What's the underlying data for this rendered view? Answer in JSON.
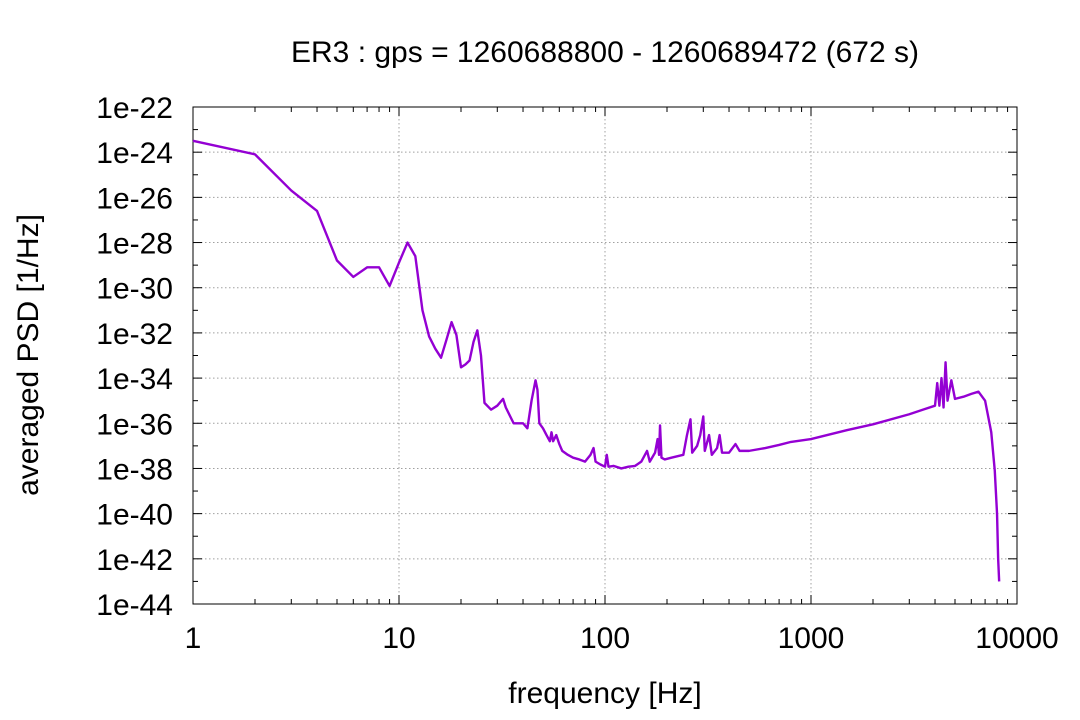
{
  "chart_data": {
    "type": "line",
    "title": "ER3 : gps = 1260688800 - 1260689472 (672 s)",
    "xlabel": "frequency [Hz]",
    "ylabel": "averaged PSD [1/Hz]",
    "xscale": "log",
    "yscale": "log",
    "xlim": [
      1,
      10000
    ],
    "ylim": [
      1e-44,
      1e-22
    ],
    "grid": true,
    "legend": "none",
    "xticks": [
      {
        "value": 1,
        "label": "1"
      },
      {
        "value": 10,
        "label": "10"
      },
      {
        "value": 100,
        "label": "100"
      },
      {
        "value": 1000,
        "label": "1000"
      },
      {
        "value": 10000,
        "label": "10000"
      }
    ],
    "yticks": [
      {
        "value": 1e-22,
        "label": "1e-22"
      },
      {
        "value": 1e-24,
        "label": "1e-24"
      },
      {
        "value": 1e-26,
        "label": "1e-26"
      },
      {
        "value": 1e-28,
        "label": "1e-28"
      },
      {
        "value": 1e-30,
        "label": "1e-30"
      },
      {
        "value": 1e-32,
        "label": "1e-32"
      },
      {
        "value": 1e-34,
        "label": "1e-34"
      },
      {
        "value": 1e-36,
        "label": "1e-36"
      },
      {
        "value": 1e-38,
        "label": "1e-38"
      },
      {
        "value": 1e-40,
        "label": "1e-40"
      },
      {
        "value": 1e-42,
        "label": "1e-42"
      },
      {
        "value": 1e-44,
        "label": "1e-44"
      }
    ],
    "series": [
      {
        "color": "#9400d3",
        "points": [
          [
            1,
            3.2e-24
          ],
          [
            2,
            8e-25
          ],
          [
            3,
            2e-26
          ],
          [
            4,
            2.5e-27
          ],
          [
            5,
            1.6e-29
          ],
          [
            6,
            3e-30
          ],
          [
            7,
            8e-30
          ],
          [
            8,
            8e-30
          ],
          [
            9,
            1.2e-30
          ],
          [
            10,
            1.3e-29
          ],
          [
            11,
            1e-28
          ],
          [
            12,
            2.5e-29
          ],
          [
            13,
            1e-31
          ],
          [
            14,
            7e-33
          ],
          [
            15,
            2e-33
          ],
          [
            16,
            8e-34
          ],
          [
            17,
            5e-33
          ],
          [
            18,
            3e-32
          ],
          [
            19,
            8e-33
          ],
          [
            20,
            3e-34
          ],
          [
            21,
            4e-34
          ],
          [
            22,
            6e-34
          ],
          [
            23,
            4e-33
          ],
          [
            24,
            1.3e-32
          ],
          [
            25,
            1e-33
          ],
          [
            26,
            8e-36
          ],
          [
            28,
            4e-36
          ],
          [
            30,
            6e-36
          ],
          [
            32,
            1.2e-35
          ],
          [
            33,
            5e-36
          ],
          [
            36,
            1e-36
          ],
          [
            40,
            1e-36
          ],
          [
            42,
            6e-37
          ],
          [
            44,
            1e-35
          ],
          [
            46,
            8e-35
          ],
          [
            47,
            3e-35
          ],
          [
            48,
            1e-36
          ],
          [
            50,
            6e-37
          ],
          [
            52,
            3e-37
          ],
          [
            54,
            1.6e-37
          ],
          [
            55,
            4e-37
          ],
          [
            56,
            1.6e-37
          ],
          [
            58,
            3e-37
          ],
          [
            60,
            1.2e-37
          ],
          [
            62,
            6e-38
          ],
          [
            66,
            4e-38
          ],
          [
            70,
            3e-38
          ],
          [
            75,
            2.5e-38
          ],
          [
            80,
            2e-38
          ],
          [
            85,
            4e-38
          ],
          [
            88,
            8e-38
          ],
          [
            90,
            2e-38
          ],
          [
            95,
            1.5e-38
          ],
          [
            100,
            1.2e-38
          ],
          [
            102,
            4e-38
          ],
          [
            104,
            1.2e-38
          ],
          [
            110,
            1.3e-38
          ],
          [
            120,
            1e-38
          ],
          [
            130,
            1.2e-38
          ],
          [
            140,
            1.3e-38
          ],
          [
            150,
            2e-38
          ],
          [
            160,
            6e-38
          ],
          [
            165,
            2e-38
          ],
          [
            175,
            5e-38
          ],
          [
            180,
            2e-37
          ],
          [
            183,
            4e-38
          ],
          [
            185,
            8e-37
          ],
          [
            188,
            3e-38
          ],
          [
            195,
            2.5e-38
          ],
          [
            210,
            3e-38
          ],
          [
            240,
            4e-38
          ],
          [
            250,
            3e-37
          ],
          [
            260,
            1.5e-36
          ],
          [
            265,
            5e-38
          ],
          [
            280,
            1e-37
          ],
          [
            290,
            3e-37
          ],
          [
            300,
            2e-36
          ],
          [
            305,
            6e-38
          ],
          [
            320,
            3e-37
          ],
          [
            330,
            4e-38
          ],
          [
            350,
            8e-38
          ],
          [
            360,
            3e-37
          ],
          [
            370,
            5e-38
          ],
          [
            400,
            5e-38
          ],
          [
            430,
            1.2e-37
          ],
          [
            450,
            6e-38
          ],
          [
            500,
            6e-38
          ],
          [
            600,
            8e-38
          ],
          [
            700,
            1.1e-37
          ],
          [
            800,
            1.5e-37
          ],
          [
            1000,
            2e-37
          ],
          [
            1500,
            5e-37
          ],
          [
            2000,
            9e-37
          ],
          [
            3000,
            2.5e-36
          ],
          [
            3500,
            4e-36
          ],
          [
            4000,
            6e-36
          ],
          [
            4100,
            6e-35
          ],
          [
            4200,
            6e-36
          ],
          [
            4300,
            1e-34
          ],
          [
            4400,
            5e-36
          ],
          [
            4500,
            5e-34
          ],
          [
            4600,
            1e-35
          ],
          [
            4800,
            8e-35
          ],
          [
            5000,
            1.2e-35
          ],
          [
            5500,
            1.5e-35
          ],
          [
            6000,
            2e-35
          ],
          [
            6500,
            2.5e-35
          ],
          [
            7000,
            1e-35
          ],
          [
            7500,
            4e-37
          ],
          [
            7800,
            8e-39
          ],
          [
            8000,
            1e-40
          ],
          [
            8100,
            1e-42
          ],
          [
            8192,
            1e-43
          ]
        ]
      }
    ]
  }
}
